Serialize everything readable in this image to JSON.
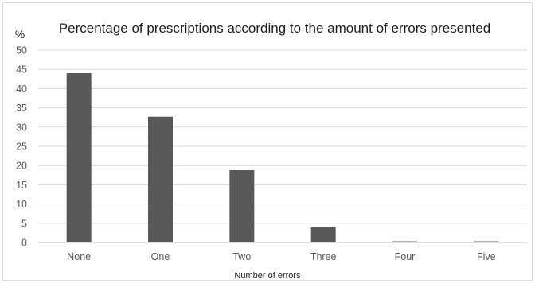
{
  "chart_data": {
    "type": "bar",
    "title": "Percentage of prescriptions according to the amount of  errors presented",
    "ylabel": "%",
    "xlabel": "Number of errors",
    "categories": [
      "None",
      "One",
      "Two",
      "Three",
      "Four",
      "Five"
    ],
    "values": [
      44,
      32.7,
      18.8,
      4,
      0.3,
      0.3
    ],
    "ylim": [
      0,
      50
    ],
    "yticks": [
      0,
      5,
      10,
      15,
      20,
      25,
      30,
      35,
      40,
      45,
      50
    ],
    "grid": true,
    "legend": "none",
    "colors": {
      "bar": "#595959",
      "grid": "#d9d9d9",
      "text": "#595959"
    }
  }
}
